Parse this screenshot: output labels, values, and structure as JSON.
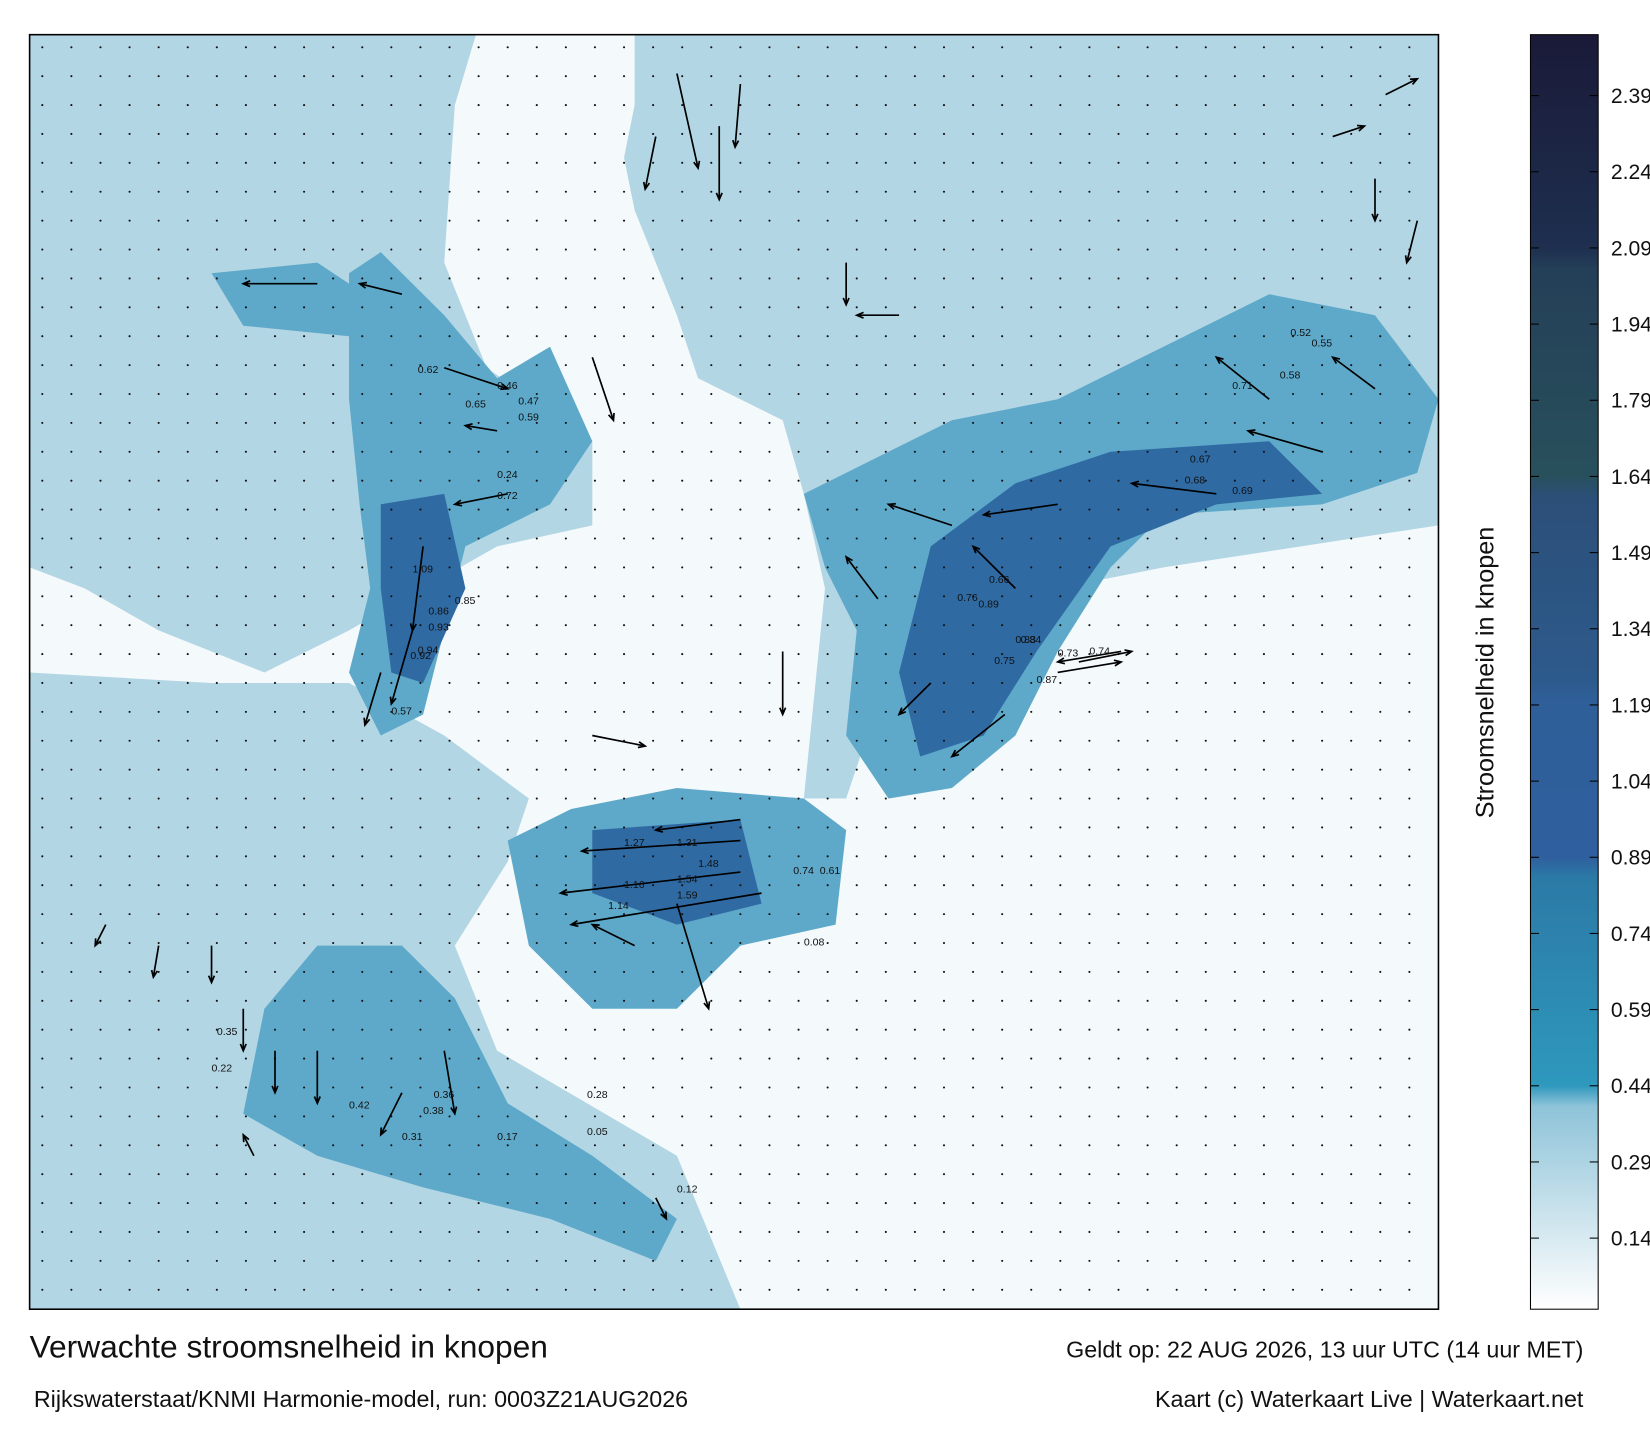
{
  "header": {
    "title": "Verwachte stroomsnelheid in knopen",
    "source": "Rijkswaterstaat/KNMI Harmonie-model, run: 0003Z21AUG2026",
    "valid": "Geldt op: 22 AUG 2026, 13 uur UTC (14 uur MET)",
    "credit": "Kaart (c) Waterkaart Live | Waterkaart.net"
  },
  "colorbar": {
    "label": "Stroomsnelheid in knopen",
    "range": [
      0,
      2.51
    ],
    "ticks": [
      0.14,
      0.29,
      0.44,
      0.59,
      0.74,
      0.89,
      1.04,
      1.19,
      1.34,
      1.49,
      1.64,
      1.79,
      1.94,
      2.09,
      2.24,
      2.39
    ],
    "stops": [
      {
        "value": 0,
        "color": "#ffffff"
      },
      {
        "value": 0.4,
        "color": "#8ec3d8"
      },
      {
        "value": 0.44,
        "color": "#2e98bd"
      },
      {
        "value": 0.85,
        "color": "#2b7aa6"
      },
      {
        "value": 0.89,
        "color": "#2f5f9e"
      },
      {
        "value": 1.2,
        "color": "#2f5f98"
      },
      {
        "value": 1.24,
        "color": "#2d5a8c"
      },
      {
        "value": 1.6,
        "color": "#2c4f78"
      },
      {
        "value": 1.64,
        "color": "#28505c"
      },
      {
        "value": 2.05,
        "color": "#243f58"
      },
      {
        "value": 2.09,
        "color": "#1e2f4f"
      },
      {
        "value": 2.51,
        "color": "#1a1a38"
      }
    ]
  },
  "map": {
    "current_labels": [
      0.62,
      0.65,
      0.86,
      0.93,
      0.92,
      0.94,
      1.09,
      0.85,
      0.57,
      0.46,
      0.47,
      0.59,
      0.72,
      1.27,
      1.31,
      1.54,
      1.48,
      1.16,
      1.14,
      1.59,
      0.74,
      0.61,
      0.89,
      0.76,
      0.75,
      0.73,
      0.74,
      0.83,
      0.84,
      0.87,
      0.66,
      0.67,
      0.71,
      0.52,
      0.55,
      0.58,
      0.69,
      0.68,
      0.24,
      0.28,
      0.36,
      0.35,
      0.42,
      0.38,
      0.31,
      0.22,
      0.17,
      0.12,
      0.08,
      0.05
    ]
  }
}
